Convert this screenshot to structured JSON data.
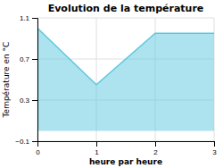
{
  "chart_data": {
    "type": "area",
    "title": "Evolution de la température",
    "xlabel": "heure par heure",
    "ylabel": "Température en °C",
    "x": [
      0,
      1,
      2,
      3
    ],
    "values": [
      1.0,
      0.45,
      0.95,
      0.95
    ],
    "color": "#5bc8e0",
    "xlim": [
      0,
      3
    ],
    "ylim": [
      -0.1,
      1.1
    ],
    "xticks": [
      0,
      1,
      2,
      3
    ],
    "yticks": [
      {
        "value": -0.1,
        "label": "−0.1"
      },
      0.3,
      0.7,
      1.1
    ],
    "grid": true
  }
}
